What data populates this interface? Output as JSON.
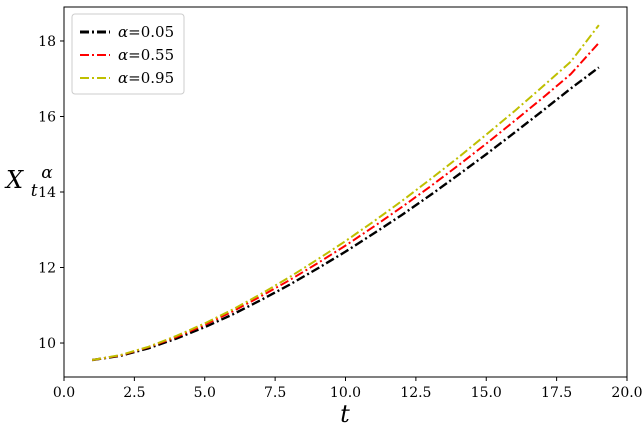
{
  "chart_data": {
    "type": "line",
    "title": "",
    "xlabel": "t",
    "ylabel": {
      "base": "X",
      "sub": "t",
      "sup": "α"
    },
    "xlim": [
      0.0,
      20.0
    ],
    "ylim": [
      9.1,
      18.9
    ],
    "xticks": [
      0.0,
      2.5,
      5.0,
      7.5,
      10.0,
      12.5,
      15.0,
      17.5,
      20.0
    ],
    "xtick_labels": [
      "0.0",
      "2.5",
      "5.0",
      "7.5",
      "10.0",
      "12.5",
      "15.0",
      "17.5",
      "20.0"
    ],
    "yticks": [
      10,
      12,
      14,
      16,
      18
    ],
    "ytick_labels": [
      "10",
      "12",
      "14",
      "16",
      "18"
    ],
    "grid": false,
    "legend_position": "top-left",
    "x": [
      1,
      2,
      3,
      4,
      5,
      6,
      7,
      8,
      9,
      10,
      11,
      12,
      13,
      14,
      15,
      16,
      17,
      18,
      19
    ],
    "series": [
      {
        "name": "α=0.05",
        "alpha_symbol": "α",
        "alpha_value": "=0.05",
        "color": "#000000",
        "values": [
          9.55,
          9.66,
          9.86,
          10.12,
          10.42,
          10.76,
          11.14,
          11.54,
          11.97,
          12.42,
          12.9,
          13.39,
          13.91,
          14.45,
          15.0,
          15.57,
          16.15,
          16.74,
          17.3
        ]
      },
      {
        "name": "α=0.55",
        "alpha_symbol": "α",
        "alpha_value": "=0.55",
        "color": "#ff0000",
        "values": [
          9.55,
          9.67,
          9.89,
          10.16,
          10.48,
          10.84,
          11.24,
          11.66,
          12.11,
          12.58,
          13.08,
          13.6,
          14.14,
          14.7,
          15.28,
          15.88,
          16.49,
          17.12,
          17.95
        ]
      },
      {
        "name": "α=0.95",
        "alpha_symbol": "α",
        "alpha_value": "=0.95",
        "color": "#bfbf00",
        "values": [
          9.55,
          9.68,
          9.9,
          10.19,
          10.52,
          10.89,
          11.3,
          11.74,
          12.21,
          12.7,
          13.22,
          13.76,
          14.33,
          14.91,
          15.52,
          16.14,
          16.79,
          17.45,
          18.42
        ]
      }
    ]
  }
}
